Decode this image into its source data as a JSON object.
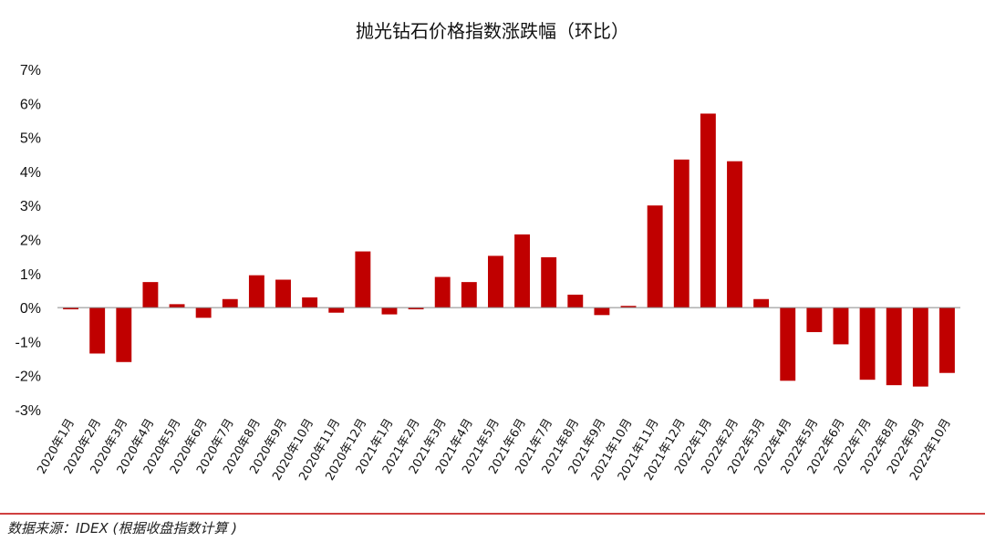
{
  "chart_data": {
    "type": "bar",
    "title": "抛光钻石价格指数涨跌幅（环比）",
    "categories": [
      "2020年1月",
      "2020年2月",
      "2020年3月",
      "2020年4月",
      "2020年5月",
      "2020年6月",
      "2020年7月",
      "2020年8月",
      "2020年9月",
      "2020年10月",
      "2020年11月",
      "2020年12月",
      "2021年1月",
      "2021年2月",
      "2021年3月",
      "2021年4月",
      "2021年5月",
      "2021年6月",
      "2021年7月",
      "2021年8月",
      "2021年9月",
      "2021年10月",
      "2021年11月",
      "2021年12月",
      "2022年1月",
      "2022年2月",
      "2022年3月",
      "2022年4月",
      "2022年5月",
      "2022年6月",
      "2022年7月",
      "2022年8月",
      "2022年9月",
      "2022年10月"
    ],
    "values": [
      -0.05,
      -1.35,
      -1.6,
      0.75,
      0.1,
      -0.3,
      0.25,
      0.95,
      0.82,
      0.3,
      -0.15,
      1.65,
      -0.2,
      -0.05,
      0.9,
      0.75,
      1.52,
      2.15,
      1.48,
      0.38,
      -0.22,
      0.05,
      3.0,
      4.35,
      5.7,
      4.3,
      0.25,
      -2.15,
      -0.72,
      -1.08,
      -2.12,
      -2.28,
      -2.32,
      -1.92
    ],
    "y_ticks": [
      "7%",
      "6%",
      "5%",
      "4%",
      "3%",
      "2%",
      "1%",
      "0%",
      "-1%",
      "-2%",
      "-3%"
    ],
    "ylim": [
      -3,
      7
    ],
    "bar_color": "#c00000",
    "grid": false,
    "legend": "none"
  },
  "source": "数据来源：IDEX (根据收盘指数计算 )",
  "footer_line_color": "#c00000"
}
